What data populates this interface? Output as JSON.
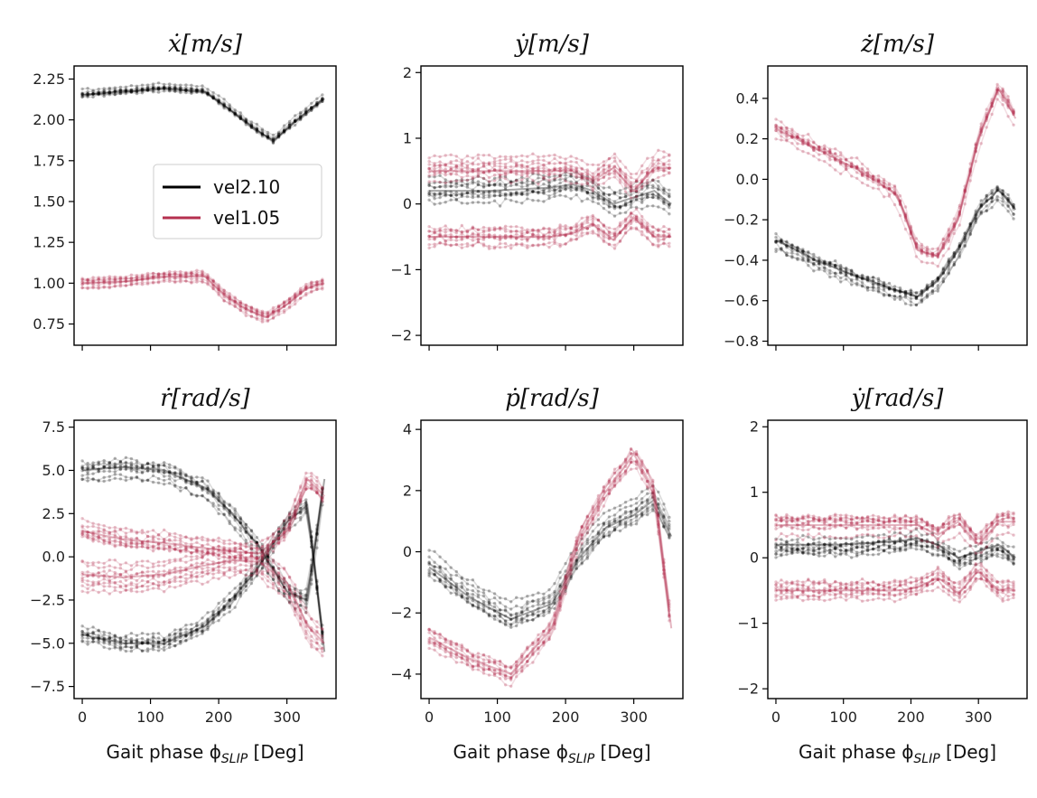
{
  "chart_data": [
    {
      "type": "line",
      "title": "ẋ[m/s]",
      "xlabel": "",
      "xlim": [
        -12,
        372
      ],
      "ylim": [
        0.62,
        2.33
      ],
      "xticks": [
        0,
        100,
        200,
        300
      ],
      "xtick_labels": [
        "",
        "",
        "",
        ""
      ],
      "yticks": [
        0.75,
        1.0,
        1.25,
        1.5,
        1.75,
        2.0,
        2.25
      ],
      "ytick_labels": [
        "0.75",
        "1.00",
        "1.25",
        "1.50",
        "1.75",
        "2.00",
        "2.25"
      ],
      "legend": {
        "placement": "center-right",
        "entries": [
          "vel2.10",
          "vel1.05"
        ]
      },
      "series": [
        {
          "name": "vel2.10",
          "color": "#000000",
          "x": [
            0,
            60,
            120,
            180,
            220,
            250,
            280,
            310,
            355
          ],
          "y": [
            2.15,
            2.17,
            2.19,
            2.17,
            2.05,
            1.95,
            1.87,
            1.98,
            2.13
          ]
        },
        {
          "name": "vel1.05",
          "color": "#b5304f",
          "x": [
            0,
            60,
            120,
            180,
            210,
            240,
            270,
            300,
            330,
            355
          ],
          "y": [
            1.0,
            1.01,
            1.04,
            1.04,
            0.92,
            0.84,
            0.79,
            0.87,
            0.97,
            1.0
          ]
        }
      ]
    },
    {
      "type": "line",
      "title": "ẏ[m/s]",
      "xlabel": "",
      "xlim": [
        -12,
        372
      ],
      "ylim": [
        -2.15,
        2.1
      ],
      "xticks": [
        0,
        100,
        200,
        300
      ],
      "xtick_labels": [
        "",
        "",
        "",
        ""
      ],
      "yticks": [
        -2,
        -1,
        0,
        1,
        2
      ],
      "ytick_labels": [
        "−2",
        "−1",
        "0",
        "1",
        "2"
      ],
      "series": [
        {
          "name": "vel2.10",
          "color": "#000000",
          "x": [
            0,
            90,
            180,
            210,
            240,
            270,
            300,
            330,
            355
          ],
          "y": [
            0.2,
            0.2,
            0.25,
            0.3,
            0.2,
            0.0,
            0.1,
            0.2,
            0.0
          ]
        },
        {
          "name": "vel1.05",
          "color": "#b5304f",
          "x": [
            0,
            90,
            180,
            210,
            240,
            270,
            300,
            330,
            355
          ],
          "y": [
            0.5,
            0.5,
            0.5,
            0.5,
            0.35,
            0.55,
            0.2,
            0.55,
            0.55
          ]
        },
        {
          "name": "vel1.05",
          "color": "#b5304f",
          "x": [
            0,
            90,
            180,
            210,
            240,
            270,
            300,
            330,
            355
          ],
          "y": [
            -0.5,
            -0.5,
            -0.5,
            -0.45,
            -0.3,
            -0.55,
            -0.2,
            -0.5,
            -0.5
          ]
        }
      ]
    },
    {
      "type": "line",
      "title": "ż[m/s]",
      "xlabel": "",
      "xlim": [
        -12,
        372
      ],
      "ylim": [
        -0.82,
        0.56
      ],
      "xticks": [
        0,
        100,
        200,
        300
      ],
      "xtick_labels": [
        "",
        "",
        "",
        ""
      ],
      "yticks": [
        -0.8,
        -0.6,
        -0.4,
        -0.2,
        0.0,
        0.2,
        0.4
      ],
      "ytick_labels": [
        "−0.8",
        "−0.6",
        "−0.4",
        "−0.2",
        "0.0",
        "0.2",
        "0.4"
      ],
      "series": [
        {
          "name": "vel2.10",
          "color": "#000000",
          "x": [
            0,
            60,
            120,
            180,
            210,
            240,
            270,
            300,
            330,
            355
          ],
          "y": [
            -0.3,
            -0.4,
            -0.48,
            -0.55,
            -0.58,
            -0.5,
            -0.35,
            -0.15,
            -0.05,
            -0.15
          ]
        },
        {
          "name": "vel1.05",
          "color": "#b5304f",
          "x": [
            0,
            60,
            120,
            180,
            210,
            240,
            270,
            300,
            330,
            355
          ],
          "y": [
            0.25,
            0.15,
            0.05,
            -0.08,
            -0.35,
            -0.38,
            -0.2,
            0.2,
            0.45,
            0.3
          ]
        }
      ]
    },
    {
      "type": "line",
      "title": "ṙ[rad/s]",
      "xlabel": "Gait phase ϕ_SLIP [Deg]",
      "xlim": [
        -12,
        372
      ],
      "ylim": [
        -8.2,
        7.9
      ],
      "xticks": [
        0,
        100,
        200,
        300
      ],
      "xtick_labels": [
        "0",
        "100",
        "200",
        "300"
      ],
      "yticks": [
        -7.5,
        -5.0,
        -2.5,
        0.0,
        2.5,
        5.0,
        7.5
      ],
      "ytick_labels": [
        "−7.5",
        "−5.0",
        "−2.5",
        "0.0",
        "2.5",
        "5.0",
        "7.5"
      ],
      "series": [
        {
          "name": "vel2.10",
          "color": "#000000",
          "x": [
            0,
            60,
            120,
            180,
            220,
            260,
            300,
            330,
            355
          ],
          "y": [
            5.0,
            5.2,
            5.0,
            4.0,
            2.5,
            0.5,
            -2.0,
            -2.5,
            4.5
          ]
        },
        {
          "name": "vel2.10",
          "color": "#000000",
          "x": [
            0,
            60,
            120,
            180,
            220,
            260,
            300,
            330,
            355
          ],
          "y": [
            -4.5,
            -5.0,
            -5.0,
            -4.0,
            -2.5,
            -0.5,
            2.0,
            3.0,
            -5.5
          ]
        },
        {
          "name": "vel1.05",
          "color": "#b5304f",
          "x": [
            0,
            60,
            120,
            180,
            220,
            260,
            300,
            330,
            355
          ],
          "y": [
            1.5,
            1.0,
            0.8,
            0.5,
            0.3,
            0.2,
            1.5,
            4.5,
            3.5
          ]
        },
        {
          "name": "vel1.05",
          "color": "#b5304f",
          "x": [
            0,
            60,
            120,
            180,
            220,
            260,
            300,
            330,
            355
          ],
          "y": [
            -1.0,
            -1.2,
            -1.0,
            -0.5,
            -0.2,
            -0.3,
            -1.5,
            -4.0,
            -5.0
          ]
        }
      ]
    },
    {
      "type": "line",
      "title": "ṗ[rad/s]",
      "xlabel": "Gait phase ϕ_SLIP [Deg]",
      "xlim": [
        -12,
        372
      ],
      "ylim": [
        -4.8,
        4.3
      ],
      "xticks": [
        0,
        100,
        200,
        300
      ],
      "xtick_labels": [
        "0",
        "100",
        "200",
        "300"
      ],
      "yticks": [
        -4,
        -2,
        0,
        2,
        4
      ],
      "ytick_labels": [
        "−4",
        "−2",
        "0",
        "2",
        "4"
      ],
      "series": [
        {
          "name": "vel2.10",
          "color": "#000000",
          "x": [
            0,
            60,
            120,
            180,
            220,
            260,
            300,
            330,
            355
          ],
          "y": [
            -0.5,
            -1.5,
            -2.2,
            -1.7,
            -0.2,
            0.8,
            1.2,
            1.7,
            0.5
          ]
        },
        {
          "name": "vel1.05",
          "color": "#b5304f",
          "x": [
            0,
            60,
            120,
            180,
            220,
            260,
            300,
            330,
            355
          ],
          "y": [
            -2.8,
            -3.5,
            -4.0,
            -2.5,
            0.5,
            2.0,
            3.2,
            2.0,
            -2.5
          ]
        }
      ]
    },
    {
      "type": "line",
      "title": "ẏ[rad/s]",
      "xlabel": "Gait phase ϕ_SLIP [Deg]",
      "xlim": [
        -12,
        372
      ],
      "ylim": [
        -2.15,
        2.1
      ],
      "xticks": [
        0,
        100,
        200,
        300
      ],
      "xtick_labels": [
        "0",
        "100",
        "200",
        "300"
      ],
      "yticks": [
        -2,
        -1,
        0,
        1,
        2
      ],
      "ytick_labels": [
        "−2",
        "−1",
        "0",
        "1",
        "2"
      ],
      "series": [
        {
          "name": "vel2.10",
          "color": "#000000",
          "x": [
            0,
            90,
            180,
            210,
            240,
            270,
            300,
            330,
            355
          ],
          "y": [
            0.2,
            0.2,
            0.25,
            0.3,
            0.2,
            0.0,
            0.1,
            0.2,
            0.0
          ]
        },
        {
          "name": "vel1.05",
          "color": "#b5304f",
          "x": [
            0,
            90,
            180,
            210,
            240,
            270,
            300,
            330,
            355
          ],
          "y": [
            0.5,
            0.5,
            0.5,
            0.5,
            0.35,
            0.55,
            0.2,
            0.55,
            0.55
          ]
        },
        {
          "name": "vel1.05",
          "color": "#b5304f",
          "x": [
            0,
            90,
            180,
            210,
            240,
            270,
            300,
            330,
            355
          ],
          "y": [
            -0.5,
            -0.5,
            -0.5,
            -0.45,
            -0.3,
            -0.55,
            -0.2,
            -0.5,
            -0.5
          ]
        }
      ]
    }
  ]
}
